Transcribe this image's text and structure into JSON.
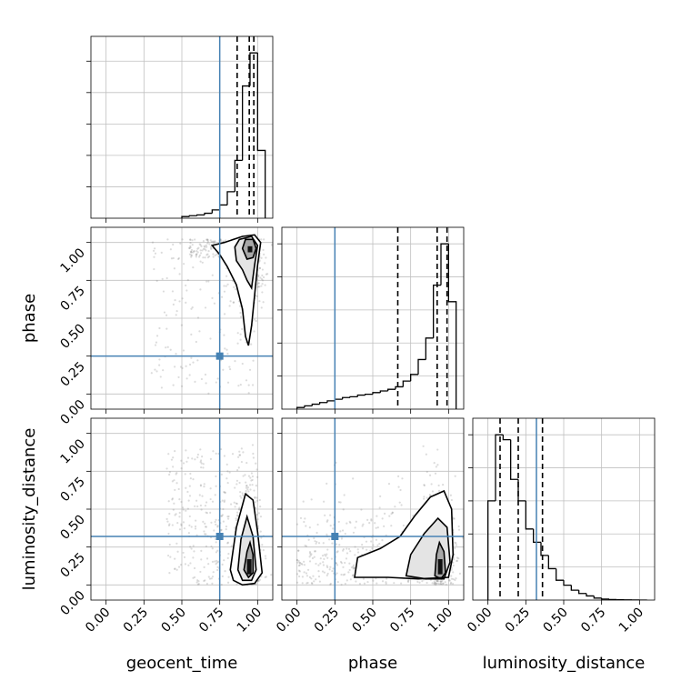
{
  "colors": {
    "truth": "#4682b4",
    "grid": "#c0c0c0",
    "hist": "#000000",
    "contour": "#000000",
    "fill": "#ffffff",
    "scatter": "#808080"
  },
  "chart_data": {
    "type": "corner",
    "parameters": [
      "geocent_time",
      "phase",
      "luminosity_distance"
    ],
    "tick_values": [
      0.0,
      0.25,
      0.5,
      0.75,
      1.0
    ],
    "tick_labels": [
      "0.00",
      "0.25",
      "0.50",
      "0.75",
      "1.00"
    ],
    "xlim": [
      -0.1,
      1.1
    ],
    "ylim": [
      -0.1,
      1.1
    ],
    "grid": true,
    "truths": {
      "geocent_time": 0.75,
      "phase": 0.25,
      "luminosity_distance": 0.32
    },
    "histograms": [
      {
        "parameter": "geocent_time",
        "bin_edges": [
          0.5,
          0.55,
          0.6,
          0.65,
          0.7,
          0.75,
          0.8,
          0.85,
          0.9,
          0.95,
          1.0,
          1.05
        ],
        "counts": [
          0.01,
          0.015,
          0.02,
          0.03,
          0.05,
          0.08,
          0.16,
          0.35,
          0.8,
          1.0,
          0.41
        ],
        "quantiles": [
          0.865,
          0.945,
          0.975
        ]
      },
      {
        "parameter": "phase",
        "bin_edges": [
          0.0,
          0.05,
          0.1,
          0.15,
          0.2,
          0.25,
          0.3,
          0.35,
          0.4,
          0.45,
          0.5,
          0.55,
          0.6,
          0.65,
          0.7,
          0.75,
          0.8,
          0.85,
          0.9,
          0.95,
          1.0,
          1.05
        ],
        "counts": [
          0.01,
          0.02,
          0.03,
          0.04,
          0.05,
          0.06,
          0.07,
          0.075,
          0.085,
          0.09,
          0.1,
          0.11,
          0.12,
          0.135,
          0.17,
          0.21,
          0.3,
          0.43,
          0.75,
          1.0,
          0.65
        ],
        "quantiles": [
          0.665,
          0.925,
          0.99
        ]
      },
      {
        "parameter": "luminosity_distance",
        "bin_edges": [
          0.0,
          0.05,
          0.1,
          0.15,
          0.2,
          0.25,
          0.3,
          0.35,
          0.4,
          0.45,
          0.5,
          0.55,
          0.6,
          0.65,
          0.7,
          0.75,
          0.8,
          0.85,
          0.9,
          0.95,
          1.0,
          1.05
        ],
        "counts": [
          0.6,
          1.0,
          0.97,
          0.73,
          0.6,
          0.43,
          0.35,
          0.27,
          0.19,
          0.12,
          0.09,
          0.06,
          0.04,
          0.025,
          0.012,
          0.006,
          0.003,
          0.002,
          0.001,
          0.0005,
          0.0
        ],
        "quantiles": [
          0.08,
          0.2,
          0.36
        ]
      }
    ],
    "pairs": [
      {
        "x": "geocent_time",
        "y": "phase",
        "peak": [
          0.945,
          0.96
        ],
        "contours": [
          [
            [
              0.7,
              0.98
            ],
            [
              0.78,
              1.0
            ],
            [
              0.9,
              1.04
            ],
            [
              0.98,
              1.05
            ],
            [
              1.02,
              1.0
            ],
            [
              1.0,
              0.85
            ],
            [
              0.98,
              0.65
            ],
            [
              0.96,
              0.45
            ],
            [
              0.94,
              0.32
            ],
            [
              0.92,
              0.38
            ],
            [
              0.9,
              0.56
            ],
            [
              0.86,
              0.72
            ],
            [
              0.8,
              0.84
            ],
            [
              0.75,
              0.92
            ]
          ],
          [
            [
              0.85,
              0.97
            ],
            [
              0.88,
              1.02
            ],
            [
              0.96,
              1.04
            ],
            [
              1.0,
              0.98
            ],
            [
              0.98,
              0.85
            ],
            [
              0.96,
              0.7
            ],
            [
              0.93,
              0.75
            ],
            [
              0.9,
              0.82
            ],
            [
              0.86,
              0.88
            ]
          ],
          [
            [
              0.9,
              0.96
            ],
            [
              0.92,
              1.02
            ],
            [
              0.97,
              1.02
            ],
            [
              0.99,
              0.96
            ],
            [
              0.97,
              0.9
            ],
            [
              0.93,
              0.89
            ]
          ]
        ]
      },
      {
        "x": "geocent_time",
        "y": "luminosity_distance",
        "peak": [
          0.945,
          0.14
        ],
        "contours": [
          [
            [
              0.82,
              0.1
            ],
            [
              0.86,
              0.38
            ],
            [
              0.92,
              0.6
            ],
            [
              0.97,
              0.56
            ],
            [
              1.0,
              0.35
            ],
            [
              1.03,
              0.08
            ],
            [
              0.98,
              0.01
            ],
            [
              0.9,
              0.0
            ],
            [
              0.84,
              0.03
            ]
          ],
          [
            [
              0.87,
              0.1
            ],
            [
              0.89,
              0.3
            ],
            [
              0.93,
              0.45
            ],
            [
              0.97,
              0.32
            ],
            [
              0.99,
              0.1
            ],
            [
              0.96,
              0.03
            ],
            [
              0.9,
              0.03
            ]
          ],
          [
            [
              0.91,
              0.1
            ],
            [
              0.93,
              0.22
            ],
            [
              0.95,
              0.28
            ],
            [
              0.97,
              0.2
            ],
            [
              0.97,
              0.08
            ],
            [
              0.94,
              0.05
            ]
          ]
        ]
      },
      {
        "x": "phase",
        "y": "luminosity_distance",
        "peak": [
          0.945,
          0.14
        ],
        "contours": [
          [
            [
              0.38,
              0.05
            ],
            [
              0.4,
              0.18
            ],
            [
              0.55,
              0.24
            ],
            [
              0.68,
              0.32
            ],
            [
              0.78,
              0.46
            ],
            [
              0.88,
              0.58
            ],
            [
              0.97,
              0.62
            ],
            [
              1.02,
              0.5
            ],
            [
              1.03,
              0.2
            ],
            [
              1.0,
              0.05
            ],
            [
              0.8,
              0.04
            ],
            [
              0.6,
              0.05
            ]
          ],
          [
            [
              0.72,
              0.06
            ],
            [
              0.75,
              0.2
            ],
            [
              0.84,
              0.34
            ],
            [
              0.93,
              0.44
            ],
            [
              0.99,
              0.38
            ],
            [
              1.01,
              0.15
            ],
            [
              0.97,
              0.04
            ],
            [
              0.85,
              0.04
            ]
          ],
          [
            [
              0.91,
              0.06
            ],
            [
              0.92,
              0.2
            ],
            [
              0.94,
              0.28
            ],
            [
              0.97,
              0.22
            ],
            [
              0.98,
              0.08
            ],
            [
              0.95,
              0.04
            ]
          ]
        ]
      }
    ]
  }
}
